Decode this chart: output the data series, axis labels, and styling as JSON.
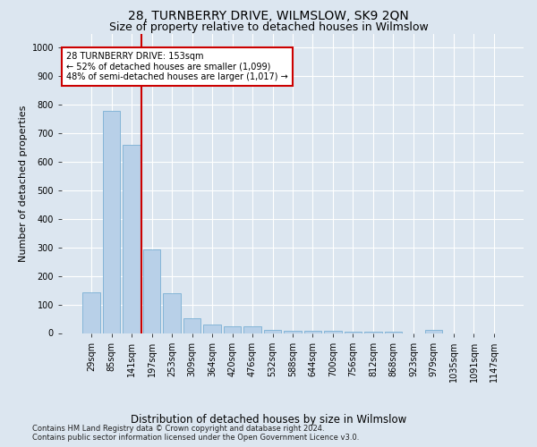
{
  "title": "28, TURNBERRY DRIVE, WILMSLOW, SK9 2QN",
  "subtitle": "Size of property relative to detached houses in Wilmslow",
  "xlabel": "Distribution of detached houses by size in Wilmslow",
  "ylabel": "Number of detached properties",
  "bar_labels": [
    "29sqm",
    "85sqm",
    "141sqm",
    "197sqm",
    "253sqm",
    "309sqm",
    "364sqm",
    "420sqm",
    "476sqm",
    "532sqm",
    "588sqm",
    "644sqm",
    "700sqm",
    "756sqm",
    "812sqm",
    "868sqm",
    "923sqm",
    "979sqm",
    "1035sqm",
    "1091sqm",
    "1147sqm"
  ],
  "bar_values": [
    143,
    778,
    659,
    293,
    140,
    52,
    30,
    22,
    22,
    12,
    8,
    8,
    8,
    5,
    5,
    5,
    0,
    12,
    0,
    0,
    0
  ],
  "bar_color": "#b8d0e8",
  "bar_edge_color": "#7aafd4",
  "vline_x": 2.5,
  "vline_color": "#cc0000",
  "annotation_text": "28 TURNBERRY DRIVE: 153sqm\n← 52% of detached houses are smaller (1,099)\n48% of semi-detached houses are larger (1,017) →",
  "annotation_box_color": "#ffffff",
  "annotation_box_edge_color": "#cc0000",
  "ylim": [
    0,
    1050
  ],
  "yticks": [
    0,
    100,
    200,
    300,
    400,
    500,
    600,
    700,
    800,
    900,
    1000
  ],
  "background_color": "#dce6f0",
  "plot_bg_color": "#dce6f0",
  "footer_line1": "Contains HM Land Registry data © Crown copyright and database right 2024.",
  "footer_line2": "Contains public sector information licensed under the Open Government Licence v3.0.",
  "title_fontsize": 10,
  "subtitle_fontsize": 9,
  "xlabel_fontsize": 8.5,
  "ylabel_fontsize": 8,
  "annotation_fontsize": 7,
  "tick_fontsize": 7,
  "footer_fontsize": 6
}
